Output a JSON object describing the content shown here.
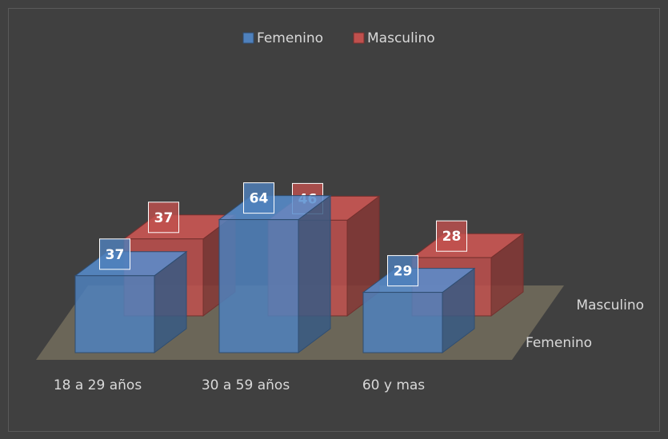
{
  "chart_data": {
    "type": "bar3d",
    "categories": [
      "18 a 29 años",
      "30 a 59 años",
      "60 y mas"
    ],
    "series": [
      {
        "name": "Femenino",
        "color": "#4f81bd",
        "values": [
          37,
          64,
          29
        ]
      },
      {
        "name": "Masculino",
        "color": "#c0504d",
        "values": [
          37,
          46,
          28
        ]
      }
    ],
    "legend": "top"
  }
}
